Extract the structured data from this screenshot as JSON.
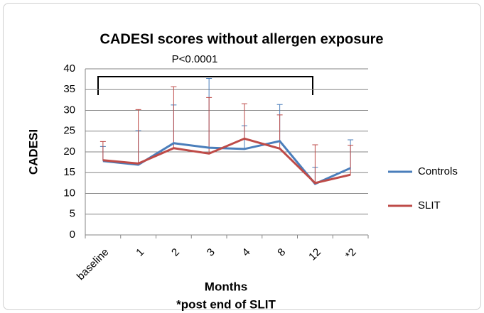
{
  "chart_data": {
    "type": "line",
    "title": "CADESI scores without allergen exposure",
    "annotation": "P<0.0001",
    "y_label": "CADESI",
    "x_label": "Months",
    "x_label_note": "*post end of SLIT",
    "categories": [
      "baseline",
      "1",
      "2",
      "3",
      "4",
      "8",
      "12",
      "*2"
    ],
    "series": [
      {
        "name": "Controls",
        "color": "#4a7ebb",
        "values": [
          17.8,
          16.9,
          22.1,
          21.0,
          20.7,
          22.6,
          12.3,
          16.1
        ],
        "errors": [
          3.5,
          8.2,
          9.2,
          16.7,
          5.6,
          8.8,
          4.0,
          6.8
        ]
      },
      {
        "name": "SLIT",
        "color": "#be4b48",
        "values": [
          18.0,
          17.2,
          20.9,
          19.6,
          23.2,
          20.8,
          12.5,
          14.5
        ],
        "errors": [
          4.5,
          13.0,
          14.8,
          13.5,
          8.4,
          8.1,
          9.2,
          7.1
        ]
      }
    ],
    "ylim": [
      0,
      40
    ],
    "yticks": [
      0,
      5,
      10,
      15,
      20,
      25,
      30,
      35,
      40
    ],
    "grid": true,
    "legend": "right"
  }
}
